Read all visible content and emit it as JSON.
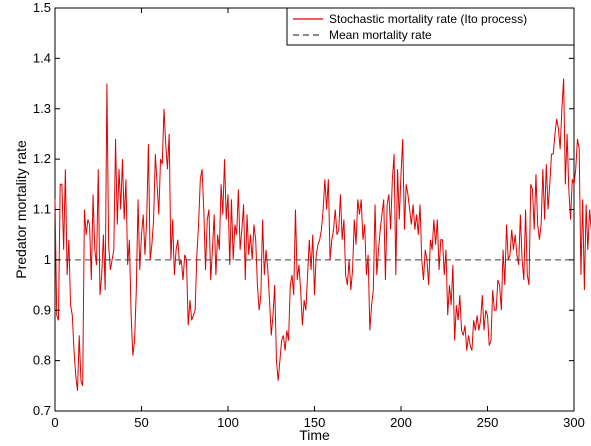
{
  "chart_data": {
    "type": "line",
    "title": "",
    "xlabel": "Time",
    "ylabel": "Predator mortality rate",
    "xlim": [
      0,
      300
    ],
    "ylim": [
      0.7,
      1.5
    ],
    "x_ticks": [
      0,
      50,
      100,
      150,
      200,
      250,
      300
    ],
    "y_ticks": [
      0.7,
      0.8,
      0.9,
      1,
      1.1,
      1.2,
      1.3,
      1.4,
      1.5
    ],
    "grid": false,
    "legend_position": "top-right",
    "series": [
      {
        "name": "Stochastic mortality rate (Ito process)",
        "color": "#e00000",
        "style": "solid",
        "x_start": 0,
        "x_step": 1,
        "values": [
          1.12,
          0.89,
          0.88,
          1.15,
          1.15,
          1.02,
          1.18,
          0.97,
          1.04,
          0.91,
          0.89,
          0.82,
          0.77,
          0.74,
          0.85,
          0.76,
          0.75,
          1.1,
          1.05,
          1.08,
          1.07,
          0.96,
          1.13,
          1.02,
          0.99,
          1.18,
          0.93,
          0.97,
          1.05,
          0.94,
          1.35,
          1.03,
          0.98,
          1.0,
          1.02,
          1.24,
          1.07,
          1.18,
          1.1,
          1.2,
          1.08,
          1.16,
          0.99,
          1.04,
          0.89,
          0.81,
          0.84,
          0.94,
          1.12,
          0.98,
          1.05,
          1.09,
          1.01,
          1.08,
          1.23,
          1.0,
          1.03,
          1.08,
          1.21,
          1.15,
          1.09,
          1.2,
          1.19,
          1.3,
          1.23,
          1.18,
          1.25,
          1.0,
          1.08,
          0.97,
          1.02,
          1.04,
          0.99,
          1.0,
          0.96,
          1.01,
          1.0,
          0.87,
          0.92,
          0.88,
          0.89,
          0.9,
          1.01,
          1.07,
          1.16,
          1.18,
          1.1,
          0.98,
          1.08,
          1.1,
          0.96,
          1.02,
          1.09,
          0.97,
          1.05,
          1.02,
          1.15,
          1.09,
          1.2,
          1.08,
          1.13,
          0.99,
          1.12,
          1.0,
          1.07,
          1.05,
          1.14,
          1.02,
          1.06,
          1.11,
          0.96,
          1.09,
          1.01,
          1.05,
          1.0,
          1.07,
          1.04,
          0.95,
          0.9,
          0.93,
          1.08,
          0.97,
          1.02,
          0.98,
          0.92,
          0.85,
          0.89,
          0.95,
          0.8,
          0.76,
          0.8,
          0.84,
          0.85,
          0.82,
          0.86,
          0.84,
          0.95,
          0.97,
          0.93,
          1.1,
          0.96,
          0.99,
          0.94,
          0.87,
          0.92,
          0.9,
          0.97,
          1.04,
          0.98,
          1.05,
          0.93,
          1.01,
          1.03,
          1.04,
          1.06,
          1.1,
          1.16,
          1.1,
          1.16,
          1.0,
          1.04,
          1.06,
          1.1,
          1.05,
          1.06,
          1.13,
          1.04,
          1.08,
          0.97,
          0.95,
          1.0,
          0.94,
          0.98,
          1.08,
          1.03,
          1.12,
          1.09,
          1.12,
          1.04,
          1.07,
          0.97,
          1.01,
          0.86,
          0.91,
          0.94,
          1.11,
          0.97,
          1.02,
          1.06,
          1.09,
          1.12,
          0.96,
          1.11,
          1.13,
          1.06,
          1.16,
          1.21,
          0.97,
          1.18,
          1.08,
          1.17,
          1.24,
          1.06,
          1.15,
          1.13,
          1.1,
          1.07,
          1.11,
          1.06,
          1.09,
          1.05,
          1.11,
          1.0,
          0.96,
          1.02,
          1.0,
          0.95,
          1.04,
          1.02,
          1.08,
          1.03,
          1.08,
          0.98,
          1.04,
          1.04,
          0.97,
          1.02,
          0.89,
          0.95,
          0.91,
          0.99,
          0.84,
          0.91,
          0.88,
          0.93,
          0.86,
          0.85,
          0.87,
          0.82,
          0.85,
          0.83,
          0.82,
          0.88,
          0.86,
          0.89,
          0.86,
          0.88,
          0.93,
          0.86,
          0.9,
          0.89,
          0.83,
          0.84,
          0.94,
          0.9,
          0.9,
          0.96,
          0.95,
          0.9,
          1.02,
          0.95,
          1.07,
          1.0,
          1.01,
          1.06,
          1.02,
          1.05,
          1.01,
          0.99,
          1.09,
          1.0,
          0.96,
          1.1,
          0.97,
          0.95,
          1.15,
          1.14,
          1.06,
          1.17,
          1.07,
          1.04,
          1.07,
          1.18,
          1.08,
          1.19,
          1.1,
          1.15,
          1.21,
          1.21,
          1.25,
          1.28,
          1.26,
          1.22,
          1.3,
          1.36,
          1.15,
          1.25,
          1.14,
          1.08,
          1.16,
          1.15,
          1.18,
          1.24,
          1.22,
          0.97,
          1.12,
          0.94,
          1.11,
          1.02,
          1.1,
          1.06,
          1.12,
          1.0
        ]
      },
      {
        "name": "Mean mortality rate",
        "color": "#404040",
        "style": "dashed",
        "x": [
          0,
          300
        ],
        "values": [
          1,
          1
        ]
      }
    ]
  }
}
